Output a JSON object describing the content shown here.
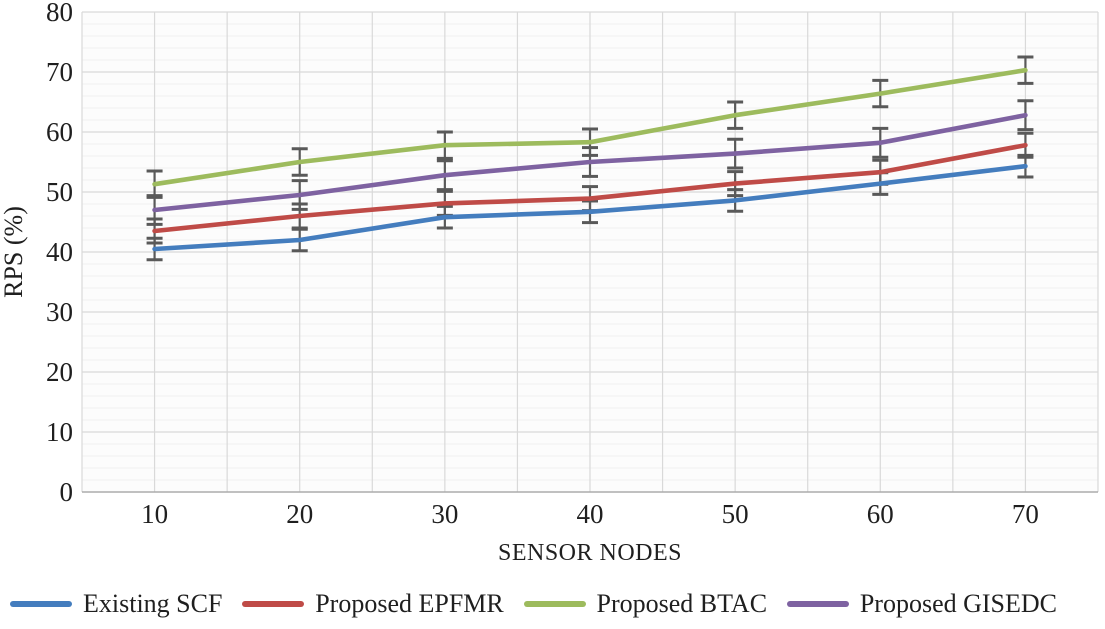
{
  "chart_data": {
    "type": "line",
    "title": "",
    "xlabel": "SENSOR NODES",
    "ylabel": "RPS (%)",
    "x": [
      10,
      20,
      30,
      40,
      50,
      60,
      70
    ],
    "ylim": [
      0,
      80
    ],
    "y_major_step": 10,
    "y_minor_step": 2,
    "grid": "major horizontal + minor horizontal + vertical at half category intervals",
    "legend_position": "bottom",
    "error_bars": true,
    "colors": {
      "error_bar": "#595959",
      "grid_major": "#d9d9d9",
      "grid_minor": "#f1f1f1",
      "axis_line": "#acacac",
      "plot_background": "#fcfcfc"
    },
    "series": [
      {
        "name": "Existing SCF",
        "color": "#447dbe",
        "values": [
          40.5,
          42.0,
          45.8,
          46.7,
          48.6,
          51.4,
          54.3
        ],
        "error": 1.8
      },
      {
        "name": "Proposed EPFMR",
        "color": "#bf4b47",
        "values": [
          43.5,
          46.0,
          48.1,
          48.9,
          51.4,
          53.3,
          57.8
        ],
        "error": 2.0
      },
      {
        "name": "Proposed BTAC",
        "color": "#9dbb5d",
        "values": [
          51.3,
          55.0,
          57.8,
          58.3,
          62.8,
          66.4,
          70.3
        ],
        "error": 2.2
      },
      {
        "name": "Proposed GISEDC",
        "color": "#7e62a1",
        "values": [
          47.0,
          49.5,
          52.8,
          55.0,
          56.4,
          58.2,
          62.8
        ],
        "error": 2.4
      }
    ]
  },
  "axes": {
    "y_tick_labels": [
      "0",
      "10",
      "20",
      "30",
      "40",
      "50",
      "60",
      "70",
      "80"
    ],
    "x_tick_labels": [
      "10",
      "20",
      "30",
      "40",
      "50",
      "60",
      "70"
    ]
  }
}
